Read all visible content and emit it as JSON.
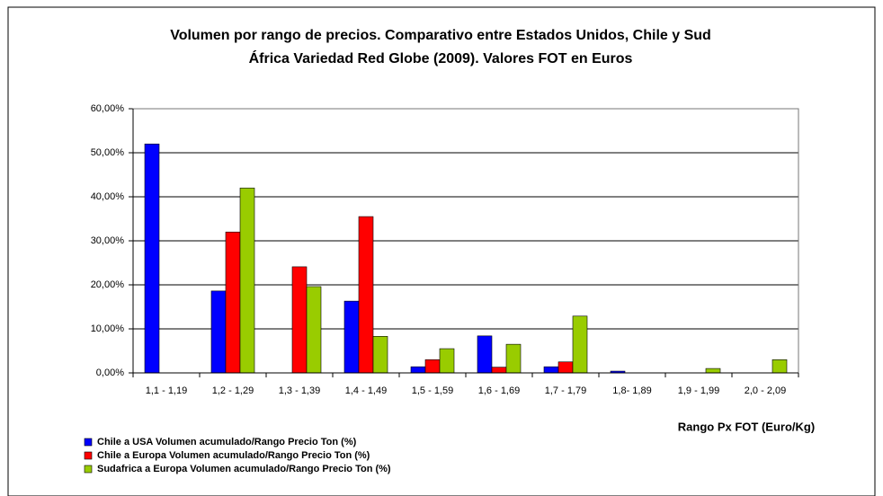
{
  "chart_data": {
    "type": "bar",
    "title": "Volumen por rango de precios. Comparativo entre Estados Unidos, Chile y Sud",
    "subtitle": "África Variedad Red Globe (2009). Valores FOT en Euros",
    "x_label": "Rango Px FOT (Euro/Kg)",
    "categories": [
      "1,1 - 1,19",
      "1,2 - 1,29",
      "1,3 - 1,39",
      "1,4 - 1,49",
      "1,5 - 1,59",
      "1,6 - 1,69",
      "1,7 - 1,79",
      "1,8- 1,89",
      "1,9 - 1,99",
      "2,0 - 2,09"
    ],
    "series": [
      {
        "name": "Chile a USA Volumen acumulado/Rango Precio Ton (%)",
        "color": "#0000ff",
        "values": [
          52.0,
          18.6,
          0,
          16.3,
          1.4,
          8.4,
          1.4,
          0.4,
          0,
          0
        ]
      },
      {
        "name": "Chile a Europa Volumen acumulado/Rango Precio Ton (%)",
        "color": "#ff0000",
        "values": [
          0,
          32.0,
          24.1,
          35.5,
          3.0,
          1.3,
          2.5,
          0,
          0,
          0
        ]
      },
      {
        "name": "Sudafrica a Europa Volumen acumulado/Rango Precio Ton (%)",
        "color": "#99cc00",
        "values": [
          0,
          42.0,
          19.6,
          8.3,
          5.5,
          6.5,
          12.9,
          0,
          1.0,
          3.0
        ]
      }
    ],
    "ylim": [
      0,
      60
    ],
    "yticks": [
      {
        "value": 0,
        "label": "0,00%"
      },
      {
        "value": 10,
        "label": "10,00%"
      },
      {
        "value": 20,
        "label": "20,00%"
      },
      {
        "value": 30,
        "label": "30,00%"
      },
      {
        "value": 40,
        "label": "40,00%"
      },
      {
        "value": 50,
        "label": "50,00%"
      },
      {
        "value": 60,
        "label": "60,00%"
      }
    ],
    "grid": true
  }
}
